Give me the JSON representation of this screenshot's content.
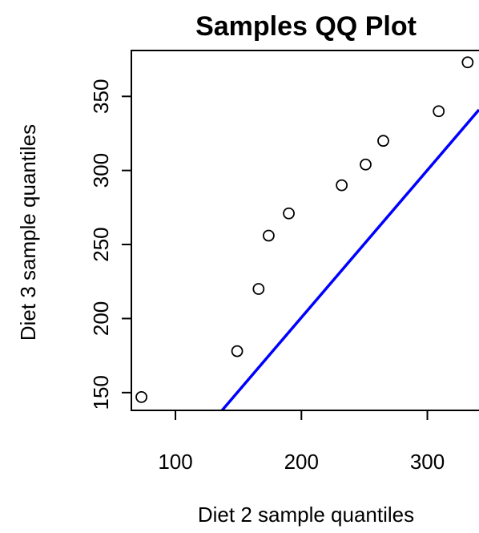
{
  "chart_data": {
    "type": "scatter",
    "title": "Samples QQ Plot",
    "xlabel": "Diet 2 sample quantiles",
    "ylabel": "Diet 3 sample quantiles",
    "xlim": [
      65,
      341
    ],
    "ylim": [
      138,
      381
    ],
    "xticks": [
      100,
      200,
      300
    ],
    "yticks": [
      150,
      200,
      250,
      300,
      350
    ],
    "grid": false,
    "legend": "none",
    "points": [
      {
        "x": 73,
        "y": 147
      },
      {
        "x": 149,
        "y": 178
      },
      {
        "x": 166,
        "y": 220
      },
      {
        "x": 174,
        "y": 256
      },
      {
        "x": 190,
        "y": 271
      },
      {
        "x": 232,
        "y": 290
      },
      {
        "x": 251,
        "y": 304
      },
      {
        "x": 265,
        "y": 320
      },
      {
        "x": 309,
        "y": 340
      },
      {
        "x": 332,
        "y": 373
      }
    ],
    "reference_line": {
      "x1": 137,
      "y1": 138,
      "x2": 341,
      "y2": 341
    },
    "colors": {
      "points": "#000000",
      "line": "#0000ff",
      "frame": "#000000"
    }
  }
}
